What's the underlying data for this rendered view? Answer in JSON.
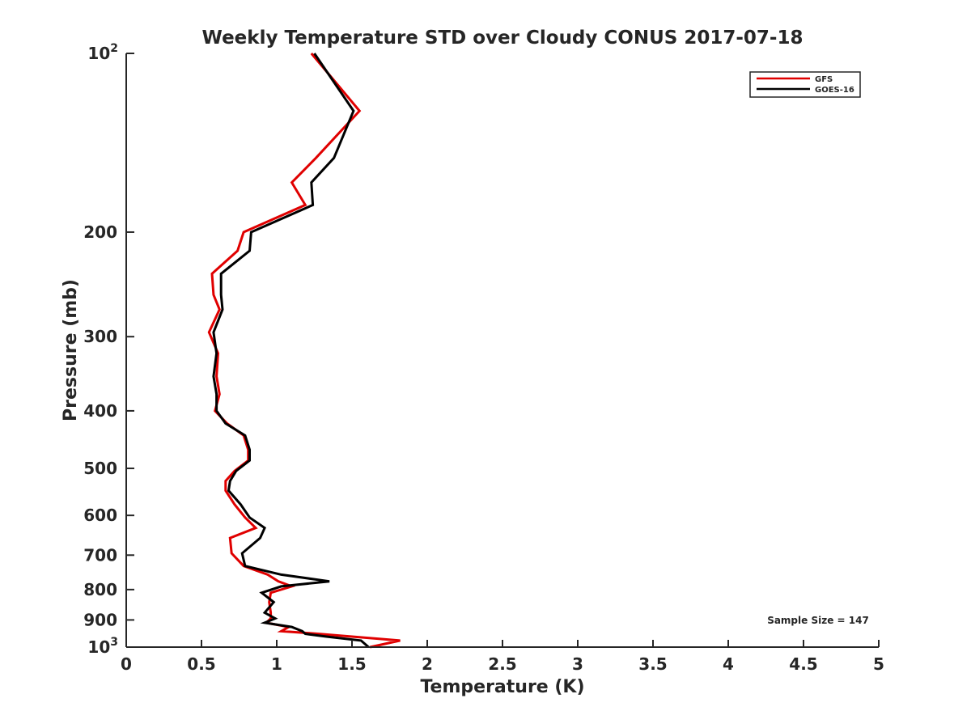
{
  "chart_data": {
    "type": "line",
    "title": "Weekly Temperature STD over Cloudy CONUS 2017-07-18",
    "xlabel": "Temperature (K)",
    "ylabel": "Pressure (mb)",
    "xlim": [
      0,
      5
    ],
    "ylim": [
      100,
      1000
    ],
    "y_scale": "log",
    "y_reversed": true,
    "x_ticks": [
      {
        "value": 0,
        "label": "0"
      },
      {
        "value": 0.5,
        "label": "0.5"
      },
      {
        "value": 1,
        "label": "1"
      },
      {
        "value": 1.5,
        "label": "1.5"
      },
      {
        "value": 2,
        "label": "2"
      },
      {
        "value": 2.5,
        "label": "2.5"
      },
      {
        "value": 3,
        "label": "3"
      },
      {
        "value": 3.5,
        "label": "3.5"
      },
      {
        "value": 4,
        "label": "4"
      },
      {
        "value": 4.5,
        "label": "4.5"
      },
      {
        "value": 5,
        "label": "5"
      }
    ],
    "y_ticks": [
      {
        "value": 100,
        "label": "10",
        "sup": "2"
      },
      {
        "value": 200,
        "label": "200"
      },
      {
        "value": 300,
        "label": "300"
      },
      {
        "value": 400,
        "label": "400"
      },
      {
        "value": 500,
        "label": "500"
      },
      {
        "value": 600,
        "label": "600"
      },
      {
        "value": 700,
        "label": "700"
      },
      {
        "value": 800,
        "label": "800"
      },
      {
        "value": 900,
        "label": "900"
      },
      {
        "value": 1000,
        "label": "10",
        "sup": "3"
      }
    ],
    "grid": false,
    "legend_position": "top-right",
    "annotation": "Sample Size = 147",
    "series": [
      {
        "name": "GFS",
        "color": "#e00000",
        "points": [
          [
            1.23,
            100
          ],
          [
            1.55,
            125
          ],
          [
            1.26,
            150
          ],
          [
            1.1,
            165
          ],
          [
            1.19,
            180
          ],
          [
            0.78,
            200
          ],
          [
            0.74,
            215
          ],
          [
            0.57,
            235
          ],
          [
            0.58,
            255
          ],
          [
            0.62,
            270
          ],
          [
            0.55,
            295
          ],
          [
            0.61,
            320
          ],
          [
            0.6,
            350
          ],
          [
            0.62,
            375
          ],
          [
            0.59,
            400
          ],
          [
            0.67,
            420
          ],
          [
            0.78,
            440
          ],
          [
            0.81,
            465
          ],
          [
            0.81,
            485
          ],
          [
            0.72,
            505
          ],
          [
            0.66,
            525
          ],
          [
            0.66,
            545
          ],
          [
            0.72,
            575
          ],
          [
            0.79,
            605
          ],
          [
            0.86,
            630
          ],
          [
            0.69,
            655
          ],
          [
            0.7,
            695
          ],
          [
            0.78,
            730
          ],
          [
            0.94,
            755
          ],
          [
            1.01,
            775
          ],
          [
            1.1,
            790
          ],
          [
            0.96,
            810
          ],
          [
            0.95,
            840
          ],
          [
            0.96,
            875
          ],
          [
            0.96,
            895
          ],
          [
            0.93,
            910
          ],
          [
            1.08,
            925
          ],
          [
            1.03,
            940
          ],
          [
            1.28,
            950
          ],
          [
            1.5,
            960
          ],
          [
            1.82,
            975
          ],
          [
            1.62,
            1000
          ]
        ]
      },
      {
        "name": "GOES-16",
        "color": "#000000",
        "points": [
          [
            1.25,
            100
          ],
          [
            1.51,
            125
          ],
          [
            1.38,
            150
          ],
          [
            1.23,
            165
          ],
          [
            1.24,
            180
          ],
          [
            0.83,
            200
          ],
          [
            0.82,
            215
          ],
          [
            0.63,
            235
          ],
          [
            0.63,
            255
          ],
          [
            0.64,
            270
          ],
          [
            0.58,
            295
          ],
          [
            0.6,
            320
          ],
          [
            0.58,
            350
          ],
          [
            0.6,
            375
          ],
          [
            0.6,
            400
          ],
          [
            0.66,
            420
          ],
          [
            0.79,
            440
          ],
          [
            0.82,
            465
          ],
          [
            0.82,
            485
          ],
          [
            0.73,
            505
          ],
          [
            0.69,
            525
          ],
          [
            0.68,
            545
          ],
          [
            0.76,
            575
          ],
          [
            0.82,
            605
          ],
          [
            0.92,
            630
          ],
          [
            0.89,
            655
          ],
          [
            0.77,
            695
          ],
          [
            0.79,
            730
          ],
          [
            1.03,
            755
          ],
          [
            1.35,
            775
          ],
          [
            1.03,
            790
          ],
          [
            0.9,
            810
          ],
          [
            0.98,
            840
          ],
          [
            0.92,
            875
          ],
          [
            0.99,
            895
          ],
          [
            0.92,
            910
          ],
          [
            1.1,
            925
          ],
          [
            1.17,
            940
          ],
          [
            1.19,
            950
          ],
          [
            1.33,
            960
          ],
          [
            1.56,
            975
          ],
          [
            1.61,
            1000
          ]
        ]
      }
    ]
  }
}
